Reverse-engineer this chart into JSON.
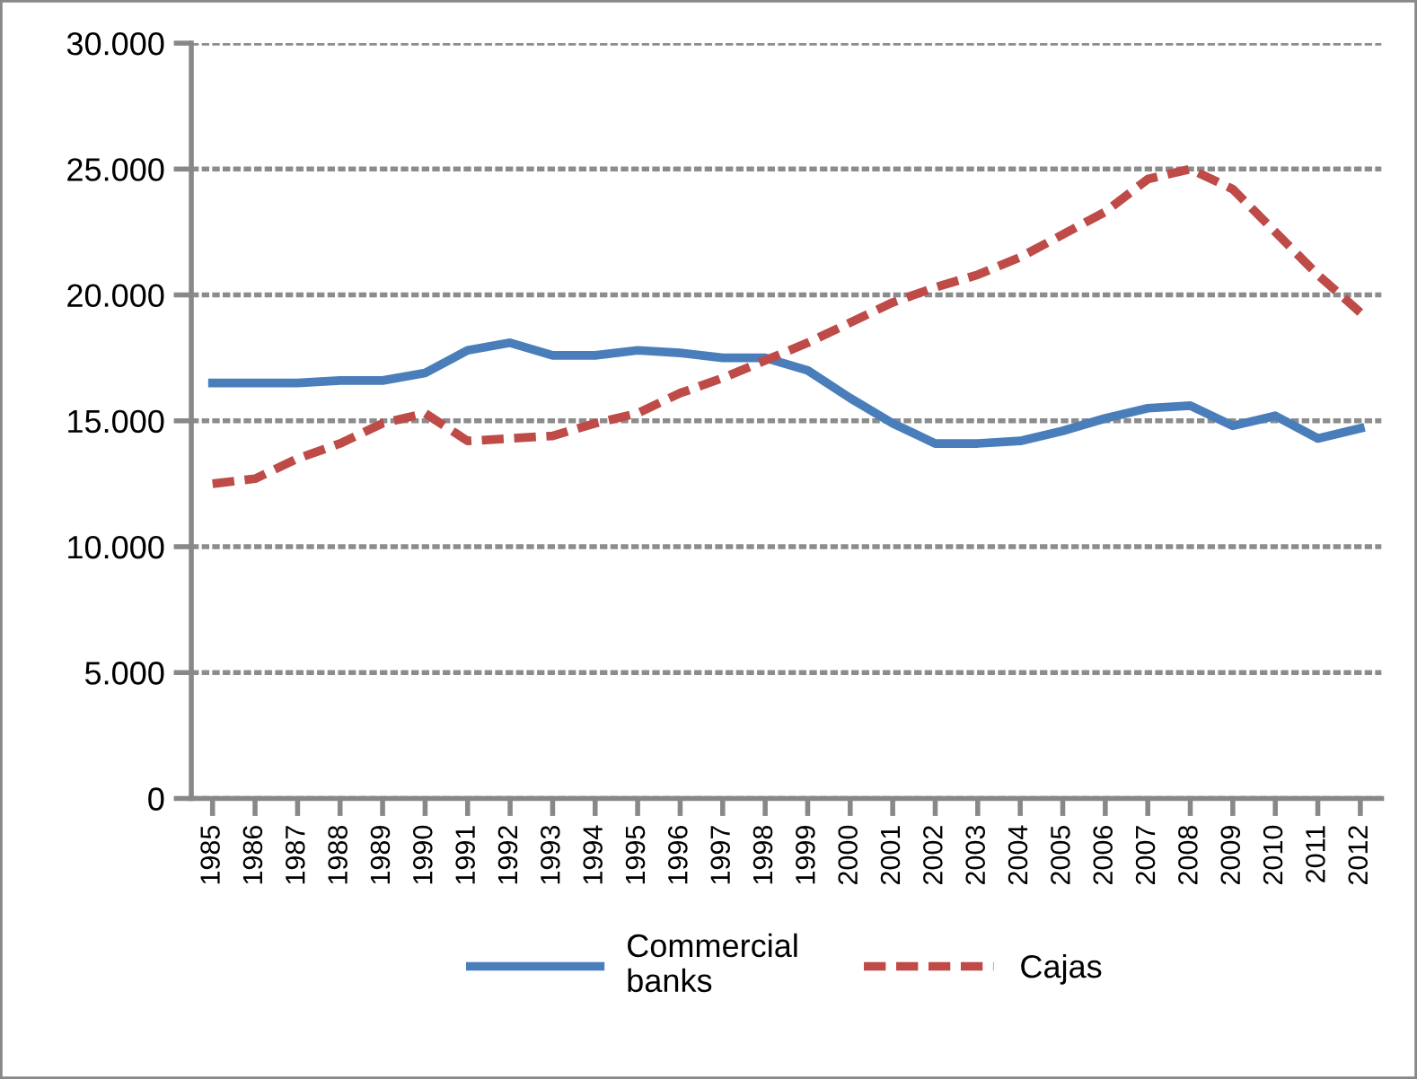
{
  "chart_data": {
    "type": "line",
    "categories": [
      "1985",
      "1986",
      "1987",
      "1988",
      "1989",
      "1990",
      "1991",
      "1992",
      "1993",
      "1994",
      "1995",
      "1996",
      "1997",
      "1998",
      "1999",
      "2000",
      "2001",
      "2002",
      "2003",
      "2004",
      "2005",
      "2006",
      "2007",
      "2008",
      "2009",
      "2010",
      "2011",
      "2012"
    ],
    "series": [
      {
        "name": "Commercial\nbanks",
        "color": "#4a7ebb",
        "line_style": "solid",
        "values": [
          16500,
          16500,
          16500,
          16600,
          16600,
          16900,
          17800,
          18100,
          17600,
          17600,
          17800,
          17700,
          17500,
          17500,
          17000,
          15900,
          14900,
          14100,
          14100,
          14200,
          14600,
          15100,
          15500,
          15600,
          14800,
          15200,
          14300,
          14700
        ]
      },
      {
        "name": "Cajas",
        "color": "#be4b48",
        "line_style": "dashed",
        "values": [
          12500,
          12700,
          13500,
          14100,
          14900,
          15300,
          14200,
          14300,
          14400,
          14900,
          15300,
          16100,
          16700,
          17400,
          18100,
          18900,
          19700,
          20300,
          20800,
          21500,
          22400,
          23300,
          24600,
          25000,
          24200,
          22500,
          20800,
          19300
        ]
      }
    ],
    "ylim": [
      0,
      30000
    ],
    "yticks": [
      0,
      {
        "value": 5000,
        "label": "5.000"
      },
      {
        "value": 10000,
        "label": "10.000"
      },
      {
        "value": 15000,
        "label": "15.000"
      },
      {
        "value": 20000,
        "label": "20.000"
      },
      {
        "value": 25000,
        "label": "25.000"
      },
      {
        "value": 30000,
        "label": "30.000"
      }
    ],
    "grid": "y",
    "legend": "bottom",
    "marker": "none"
  }
}
